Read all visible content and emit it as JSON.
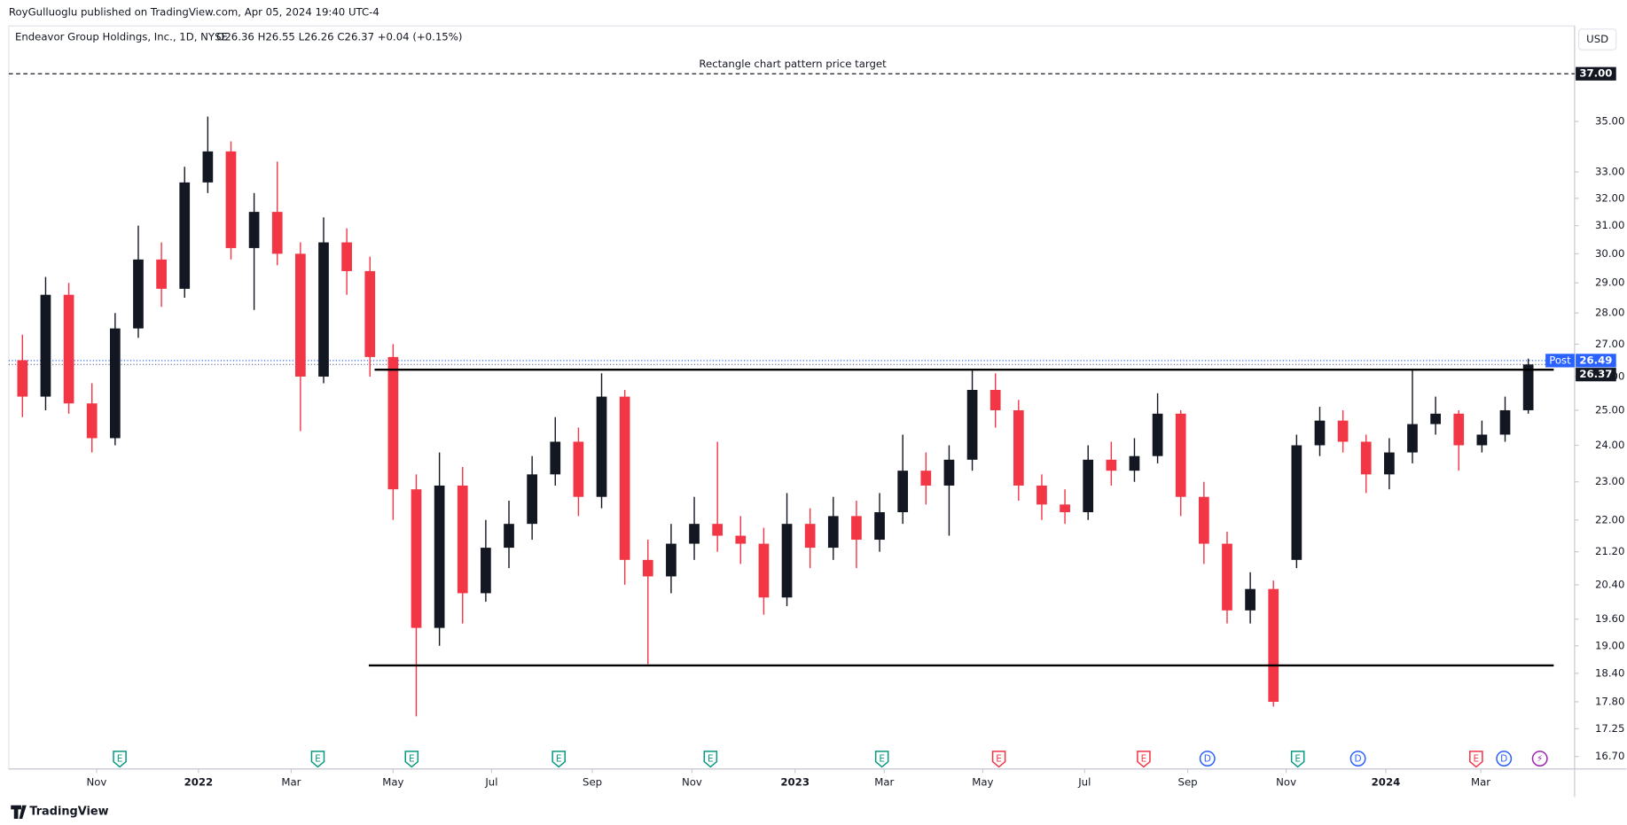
{
  "header": {
    "publisher": "RoyGulluoglu published on TradingView.com, Apr 05, 2024 19:40 UTC-4",
    "symbol": "Endeavor Group Holdings, Inc., 1D, NYSE",
    "ohlc": "O26.36 H26.55 L26.26 C26.37 +0.04 (+0.15%)",
    "currency": "USD"
  },
  "footer": {
    "brand": "TradingView"
  },
  "chart_data": {
    "type": "candlestick",
    "log_scale": true,
    "up_color": "#131722",
    "down_color": "#f23645",
    "x": [
      1,
      3,
      5,
      7,
      9,
      11,
      13,
      15,
      17,
      19,
      21,
      23,
      25,
      27,
      29,
      31,
      33,
      35,
      37,
      39,
      41,
      43,
      45,
      47,
      49,
      51,
      53,
      55,
      57,
      59,
      61,
      63,
      65,
      67,
      69,
      71,
      73,
      75,
      77,
      79,
      81,
      83,
      85,
      87,
      89,
      91,
      93,
      95,
      97,
      99,
      101,
      103,
      105,
      107,
      109,
      111,
      113,
      115,
      117,
      119,
      121,
      123,
      125,
      127,
      129,
      131
    ],
    "open": [
      26.5,
      25.4,
      28.6,
      25.2,
      24.2,
      27.5,
      29.8,
      28.8,
      32.6,
      33.8,
      30.2,
      31.5,
      30.0,
      26.0,
      30.4,
      29.4,
      26.6,
      22.8,
      19.4,
      22.9,
      20.2,
      21.3,
      21.9,
      23.2,
      24.1,
      22.6,
      25.4,
      21.0,
      20.6,
      21.4,
      21.9,
      21.6,
      21.4,
      20.1,
      21.9,
      21.3,
      22.1,
      21.5,
      22.2,
      23.3,
      22.9,
      23.6,
      25.6,
      25.0,
      22.9,
      22.4,
      22.2,
      23.6,
      23.3,
      23.7,
      24.9,
      22.6,
      21.4,
      19.8,
      20.3,
      21.0,
      24.0,
      24.7,
      24.1,
      23.2,
      23.8,
      24.6,
      24.9,
      24.0,
      24.3,
      25.0
    ],
    "high": [
      27.3,
      29.2,
      29.0,
      25.8,
      28.0,
      31.0,
      30.4,
      33.2,
      35.2,
      34.2,
      32.2,
      33.4,
      30.4,
      31.3,
      30.9,
      29.9,
      27.0,
      23.2,
      23.8,
      23.4,
      22.0,
      22.5,
      23.7,
      24.8,
      24.5,
      26.1,
      25.6,
      21.5,
      21.9,
      22.6,
      24.1,
      22.1,
      21.8,
      22.7,
      22.3,
      22.6,
      22.5,
      22.7,
      24.3,
      23.8,
      24.0,
      26.2,
      26.1,
      25.3,
      23.2,
      22.8,
      24.0,
      24.1,
      24.2,
      25.5,
      25.0,
      23.0,
      21.7,
      20.7,
      20.5,
      24.3,
      25.1,
      25.0,
      24.3,
      24.2,
      26.2,
      25.4,
      25.0,
      24.7,
      25.4,
      26.55
    ],
    "low": [
      24.8,
      25.0,
      24.9,
      23.8,
      24.0,
      27.2,
      28.2,
      28.5,
      32.2,
      29.8,
      28.1,
      29.6,
      24.4,
      25.8,
      28.6,
      26.0,
      22.0,
      17.5,
      19.0,
      19.5,
      20.0,
      20.8,
      21.5,
      22.9,
      22.1,
      22.3,
      20.4,
      18.6,
      20.2,
      21.0,
      21.2,
      20.9,
      19.7,
      19.9,
      20.8,
      21.0,
      20.8,
      21.2,
      21.9,
      22.4,
      21.6,
      23.3,
      24.5,
      22.5,
      22.0,
      21.9,
      22.0,
      22.9,
      23.0,
      23.5,
      22.1,
      20.9,
      19.5,
      19.5,
      17.7,
      20.8,
      23.7,
      23.8,
      22.7,
      22.8,
      23.5,
      24.3,
      23.3,
      23.8,
      24.1,
      24.9
    ],
    "close": [
      25.4,
      28.6,
      25.2,
      24.2,
      27.5,
      29.8,
      28.8,
      32.6,
      33.8,
      30.2,
      31.5,
      30.0,
      26.0,
      30.4,
      29.4,
      26.6,
      22.8,
      19.4,
      22.9,
      20.2,
      21.3,
      21.9,
      23.2,
      24.1,
      22.6,
      25.4,
      21.0,
      20.6,
      21.4,
      21.9,
      21.6,
      21.4,
      20.1,
      21.9,
      21.3,
      22.1,
      21.5,
      22.2,
      23.3,
      22.9,
      23.6,
      25.6,
      25.0,
      22.9,
      22.4,
      22.2,
      23.6,
      23.3,
      23.7,
      24.9,
      22.6,
      21.4,
      19.8,
      20.3,
      17.8,
      24.0,
      24.7,
      24.1,
      23.2,
      23.8,
      24.6,
      24.9,
      24.0,
      24.3,
      25.0,
      26.37
    ],
    "xlim": [
      0,
      135
    ],
    "xticks": [
      {
        "value": 7.4,
        "label": "Nov"
      },
      {
        "value": 16.2,
        "label": "2022"
      },
      {
        "value": 24.2,
        "label": "Mar"
      },
      {
        "value": 33.0,
        "label": "May"
      },
      {
        "value": 41.5,
        "label": "Jul"
      },
      {
        "value": 50.2,
        "label": "Sep"
      },
      {
        "value": 58.8,
        "label": "Nov"
      },
      {
        "value": 67.7,
        "label": "2023"
      },
      {
        "value": 75.4,
        "label": "Mar"
      },
      {
        "value": 83.9,
        "label": "May"
      },
      {
        "value": 92.7,
        "label": "Jul"
      },
      {
        "value": 101.6,
        "label": "Sep"
      },
      {
        "value": 110.1,
        "label": "Nov"
      },
      {
        "value": 118.7,
        "label": "2024"
      },
      {
        "value": 126.9,
        "label": "Mar"
      }
    ],
    "ylim": [
      16.46,
      39.12
    ],
    "yticks": [
      {
        "value": 16.7,
        "label": "16.70"
      },
      {
        "value": 17.25,
        "label": "17.25"
      },
      {
        "value": 17.8,
        "label": "17.80"
      },
      {
        "value": 18.4,
        "label": "18.40"
      },
      {
        "value": 19,
        "label": "19.00"
      },
      {
        "value": 19.6,
        "label": "19.60"
      },
      {
        "value": 20.4,
        "label": "20.40"
      },
      {
        "value": 21.2,
        "label": "21.20"
      },
      {
        "value": 22,
        "label": "22.00"
      },
      {
        "value": 23,
        "label": "23.00"
      },
      {
        "value": 24,
        "label": "24.00"
      },
      {
        "value": 25,
        "label": "25.00"
      },
      {
        "value": 26,
        "label": "26.00"
      },
      {
        "value": 27,
        "label": "27.00"
      },
      {
        "value": 28,
        "label": "28.00"
      },
      {
        "value": 29,
        "label": "29.00"
      },
      {
        "value": 30,
        "label": "30.00"
      },
      {
        "value": 31,
        "label": "31.00"
      },
      {
        "value": 32,
        "label": "32.00"
      },
      {
        "value": 33,
        "label": "33.00"
      },
      {
        "value": 35,
        "label": "35.00"
      }
    ],
    "levels": [
      {
        "value": 26.21,
        "start": 31.4,
        "end": 133.2
      },
      {
        "value": 18.57,
        "start": 30.9,
        "end": 133.2
      }
    ],
    "target": {
      "value": 37,
      "label": "Rectangle chart pattern price target"
    },
    "price_lines": [
      {
        "value": 26.49,
        "color": "#2962ff"
      },
      {
        "value": 26.37,
        "color": "#5b6b8c"
      }
    ],
    "price_labels": [
      {
        "value": 37,
        "label": "37.00",
        "color": "#131722"
      },
      {
        "value": 26.49,
        "label": "26.49",
        "tag": "Post",
        "color": "#2962ff"
      },
      {
        "value": 26.37,
        "label": "26.37",
        "color": "#131722"
      }
    ],
    "events": [
      {
        "x": 9.4,
        "label": "E",
        "color": "#089981"
      },
      {
        "x": 26.5,
        "label": "E",
        "color": "#089981"
      },
      {
        "x": 34.6,
        "label": "E",
        "color": "#089981"
      },
      {
        "x": 47.3,
        "label": "E",
        "color": "#089981"
      },
      {
        "x": 60.4,
        "label": "E",
        "color": "#089981"
      },
      {
        "x": 75.2,
        "label": "E",
        "color": "#089981"
      },
      {
        "x": 85.3,
        "label": "E",
        "color": "#f23645"
      },
      {
        "x": 97.8,
        "label": "E",
        "color": "#f23645"
      },
      {
        "x": 103.3,
        "label": "D",
        "color": "#2962ff"
      },
      {
        "x": 111.1,
        "label": "E",
        "color": "#089981"
      },
      {
        "x": 116.3,
        "label": "D",
        "color": "#2962ff"
      },
      {
        "x": 126.5,
        "label": "E",
        "color": "#f23645"
      },
      {
        "x": 128.9,
        "label": "D",
        "color": "#2962ff"
      },
      {
        "x": 132,
        "label": "⚡",
        "color": "#9c27b0"
      }
    ]
  }
}
